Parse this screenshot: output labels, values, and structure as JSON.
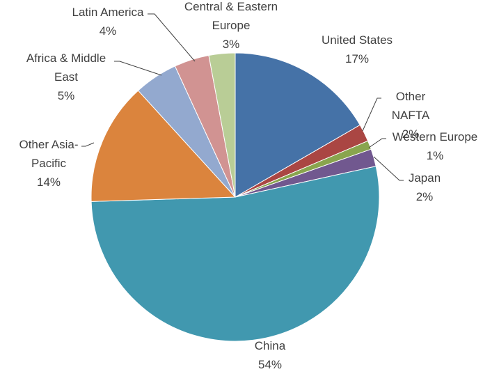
{
  "chart_data": {
    "type": "pie",
    "categories": [
      "United States",
      "Other NAFTA",
      "Western Europe",
      "Japan",
      "China",
      "Other Asia-Pacific",
      "Africa & Middle East",
      "Latin America",
      "Central & Eastern Europe"
    ],
    "values": [
      17,
      2,
      1,
      2,
      54,
      14,
      5,
      4,
      3
    ],
    "value_labels": [
      "17%",
      "2%",
      "1%",
      "2%",
      "54%",
      "14%",
      "5%",
      "4%",
      "3%"
    ],
    "colors": [
      "#4572a7",
      "#aa4643",
      "#89a54e",
      "#71588f",
      "#4198af",
      "#db843d",
      "#93a9cf",
      "#d19392",
      "#b9cd96"
    ]
  }
}
